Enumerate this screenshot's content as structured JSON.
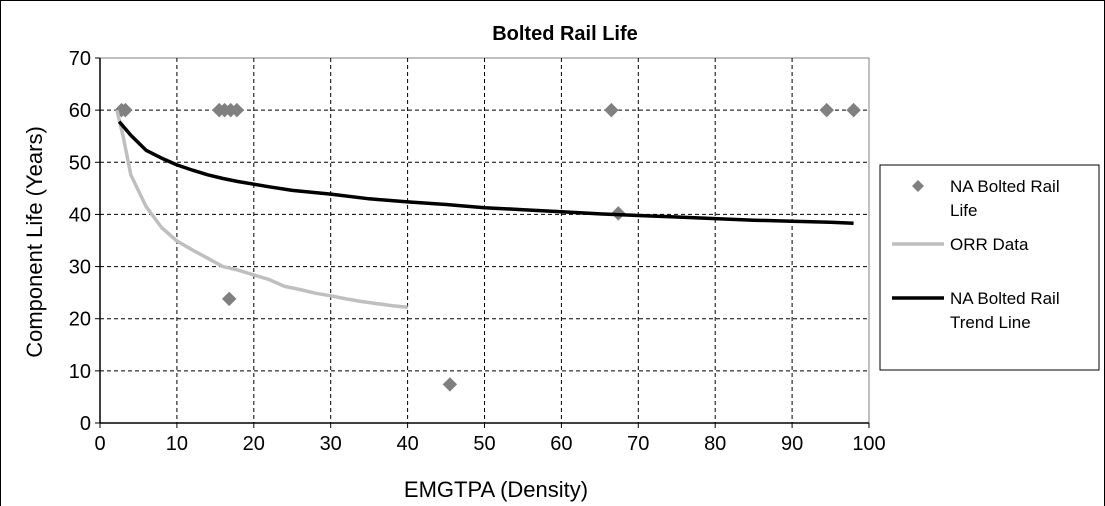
{
  "chart_data": {
    "type": "scatter",
    "title": "Bolted Rail Life",
    "xlabel": "EMGTPA (Density)",
    "ylabel": "Component Life (Years)",
    "xlim": [
      0,
      100
    ],
    "ylim": [
      0,
      70
    ],
    "x_ticks": [
      0,
      10,
      20,
      30,
      40,
      50,
      60,
      70,
      80,
      90,
      100
    ],
    "y_ticks": [
      0,
      10,
      20,
      30,
      40,
      50,
      60,
      70
    ],
    "grid": true,
    "legend_position": "right",
    "series": [
      {
        "name": "NA Bolted Rail Life",
        "type": "scatter",
        "marker": "diamond",
        "color": "#808080",
        "points": [
          [
            2.8,
            60
          ],
          [
            3.3,
            60
          ],
          [
            15.5,
            60
          ],
          [
            16.2,
            60
          ],
          [
            17.0,
            60
          ],
          [
            17.8,
            60
          ],
          [
            16.8,
            23.8
          ],
          [
            45.5,
            7.4
          ],
          [
            66.5,
            60
          ],
          [
            67.4,
            40.2
          ],
          [
            94.5,
            60
          ],
          [
            98.0,
            60
          ]
        ]
      },
      {
        "name": "ORR Data",
        "type": "line",
        "color": "#bfbfbf",
        "points": [
          [
            2.2,
            60
          ],
          [
            3,
            55
          ],
          [
            4,
            47.6
          ],
          [
            6,
            41.5
          ],
          [
            8,
            37.5
          ],
          [
            10,
            34.9
          ],
          [
            12,
            33.2
          ],
          [
            14,
            31.6
          ],
          [
            16,
            30
          ],
          [
            18,
            29.3
          ],
          [
            20,
            28.4
          ],
          [
            22,
            27.5
          ],
          [
            24,
            26.2
          ],
          [
            26,
            25.6
          ],
          [
            28,
            24.9
          ],
          [
            30,
            24.4
          ],
          [
            32,
            23.8
          ],
          [
            34,
            23.3
          ],
          [
            36,
            22.9
          ],
          [
            38,
            22.5
          ],
          [
            40,
            22.2
          ]
        ]
      },
      {
        "name": "NA Bolted Rail Trend Line",
        "type": "line",
        "color": "#000000",
        "points": [
          [
            2.5,
            57.8
          ],
          [
            4,
            55.2
          ],
          [
            6,
            52.3
          ],
          [
            8,
            50.8
          ],
          [
            10,
            49.5
          ],
          [
            12,
            48.5
          ],
          [
            14,
            47.6
          ],
          [
            16,
            46.9
          ],
          [
            18,
            46.3
          ],
          [
            20,
            45.8
          ],
          [
            22,
            45.3
          ],
          [
            25,
            44.6
          ],
          [
            30,
            43.9
          ],
          [
            35,
            43
          ],
          [
            40,
            42.4
          ],
          [
            45,
            41.9
          ],
          [
            50,
            41.3
          ],
          [
            55,
            40.9
          ],
          [
            60,
            40.5
          ],
          [
            65,
            40.1
          ],
          [
            70,
            39.8
          ],
          [
            75,
            39.5
          ],
          [
            80,
            39.2
          ],
          [
            85,
            38.9
          ],
          [
            90,
            38.7
          ],
          [
            95,
            38.5
          ],
          [
            98,
            38.3
          ]
        ]
      }
    ]
  }
}
